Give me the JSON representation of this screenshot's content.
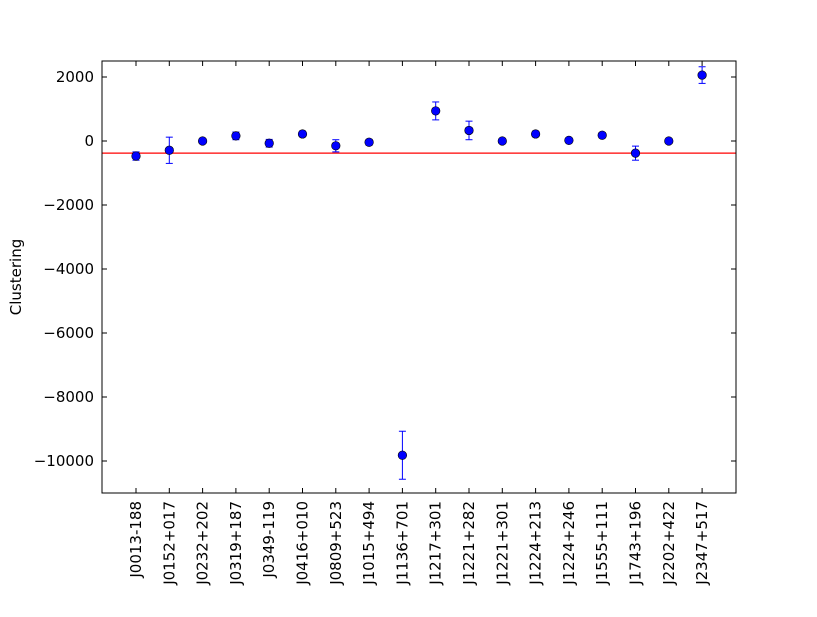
{
  "chart_data": {
    "type": "scatter",
    "title": "",
    "xlabel": "",
    "ylabel": "Clustering",
    "ylim": [
      -11000,
      2500
    ],
    "yticks": [
      -10000,
      -8000,
      -6000,
      -4000,
      -2000,
      0,
      2000
    ],
    "ytick_labels": [
      "−10000",
      "−8000",
      "−6000",
      "−4000",
      "−2000",
      "0",
      "2000"
    ],
    "grid": false,
    "legend": "none",
    "categories": [
      "J0013-188",
      "J0152+017",
      "J0232+202",
      "J0319+187",
      "J0349-119",
      "J0416+010",
      "J0809+523",
      "J1015+494",
      "J1136+701",
      "J1217+301",
      "J1221+282",
      "J1221+301",
      "J1224+213",
      "J1224+246",
      "J1555+111",
      "J1743+196",
      "J2202+422",
      "J2347+517"
    ],
    "series": [
      {
        "values": [
          -470,
          -290,
          0,
          160,
          -70,
          220,
          -150,
          -40,
          -9820,
          940,
          330,
          0,
          220,
          20,
          180,
          -380,
          0,
          2060
        ],
        "errors": [
          130,
          410,
          60,
          120,
          120,
          90,
          190,
          90,
          750,
          280,
          290,
          40,
          90,
          60,
          80,
          220,
          40,
          260
        ],
        "color": "#0000ff"
      }
    ],
    "reference_line": {
      "y": -380,
      "color": "#ff0000"
    }
  }
}
